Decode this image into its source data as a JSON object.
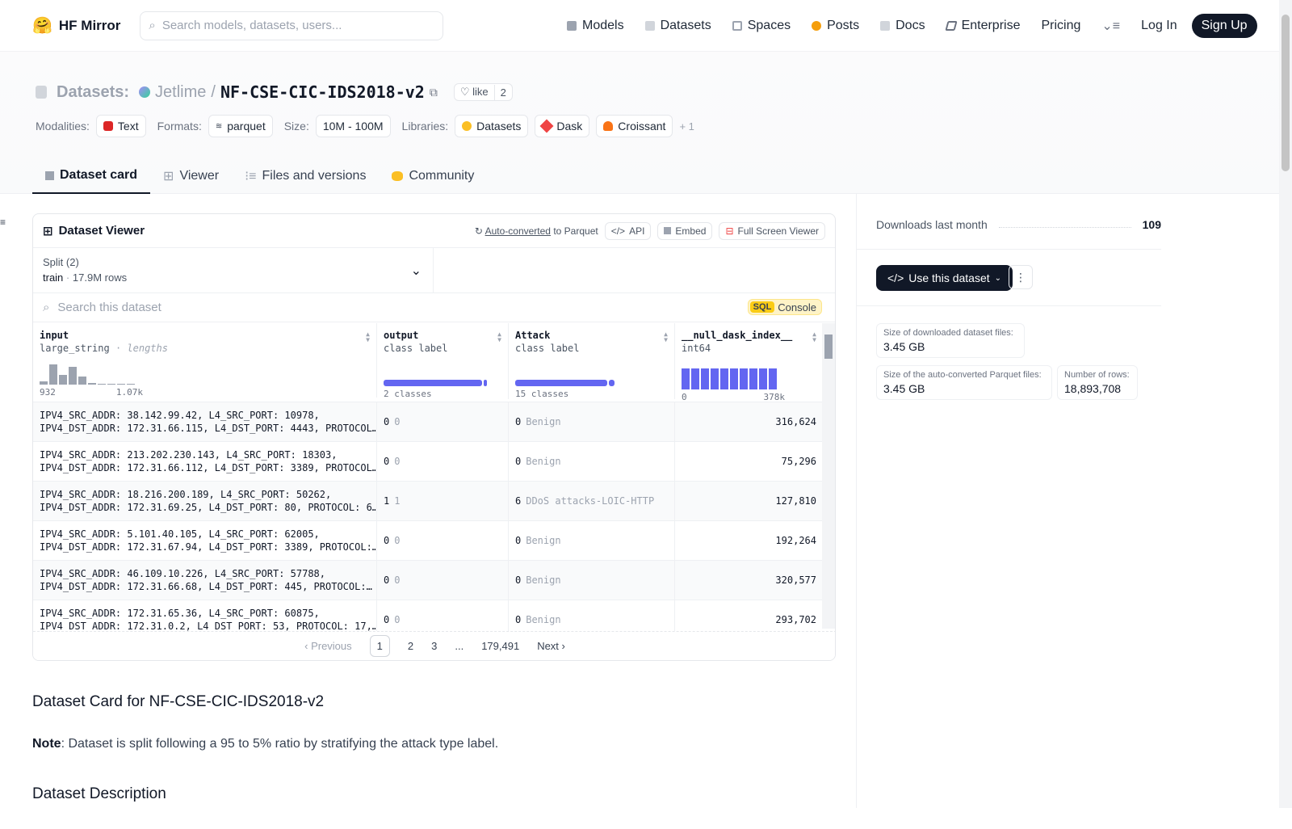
{
  "nav": {
    "brand": "HF Mirror",
    "search_placeholder": "Search models, datasets, users...",
    "links": [
      "Models",
      "Datasets",
      "Spaces",
      "Posts",
      "Docs",
      "Enterprise",
      "Pricing"
    ],
    "login": "Log In",
    "signup": "Sign Up"
  },
  "header": {
    "prefix": "Datasets:",
    "owner": "Jetlime",
    "sep": "/",
    "name": "NF-CSE-CIC-IDS2018-v2",
    "like_label": "like",
    "like_count": "2",
    "modalities_label": "Modalities:",
    "modality": "Text",
    "formats_label": "Formats:",
    "format": "parquet",
    "size_label": "Size:",
    "size": "10M - 100M",
    "libraries_label": "Libraries:",
    "libraries": [
      "Datasets",
      "Dask",
      "Croissant"
    ],
    "more": "+ 1"
  },
  "tabs": [
    "Dataset card",
    "Viewer",
    "Files and versions",
    "Community"
  ],
  "viewer": {
    "title": "Dataset Viewer",
    "auto_converted": "Auto-converted",
    "to_parquet": "to Parquet",
    "api": "API",
    "embed": "Embed",
    "fullscreen": "Full Screen Viewer",
    "split_label": "Split (2)",
    "split_value": "train",
    "split_rows": "17.9M rows",
    "search_placeholder": "Search this dataset",
    "sql": "SQL",
    "console": "Console",
    "columns": [
      {
        "name": "input",
        "type": "large_string",
        "sub": "lengths",
        "min": "932",
        "max": "1.07k"
      },
      {
        "name": "output",
        "type": "class label",
        "summary": "2 classes"
      },
      {
        "name": "Attack",
        "type": "class label",
        "summary": "15 classes"
      },
      {
        "name": "__null_dask_index__",
        "type": "int64",
        "min": "0",
        "max": "378k"
      }
    ],
    "input_hist": [
      0.15,
      0.95,
      0.45,
      0.85,
      0.4,
      0.08,
      0.05,
      0.05,
      0.05,
      0.05
    ],
    "index_hist": [
      1,
      1,
      1,
      1,
      1,
      1,
      1,
      1,
      1,
      1
    ],
    "output_split": 0.95,
    "attack_split": 0.93,
    "rows": [
      {
        "l1": "IPV4_SRC_ADDR: 38.142.99.42, L4_SRC_PORT: 10978,",
        "l2": "IPV4_DST_ADDR: 172.31.66.115, L4_DST_PORT: 4443, PROTOCOL…",
        "out": "0",
        "outl": "0",
        "att": "0",
        "attl": "Benign",
        "idx": "316,624"
      },
      {
        "l1": "IPV4_SRC_ADDR: 213.202.230.143, L4_SRC_PORT: 18303,",
        "l2": "IPV4_DST_ADDR: 172.31.66.112, L4_DST_PORT: 3389, PROTOCOL…",
        "out": "0",
        "outl": "0",
        "att": "0",
        "attl": "Benign",
        "idx": "75,296"
      },
      {
        "l1": "IPV4_SRC_ADDR: 18.216.200.189, L4_SRC_PORT: 50262,",
        "l2": "IPV4_DST_ADDR: 172.31.69.25, L4_DST_PORT: 80, PROTOCOL: 6…",
        "out": "1",
        "outl": "1",
        "att": "6",
        "attl": "DDoS attacks-LOIC-HTTP",
        "idx": "127,810"
      },
      {
        "l1": "IPV4_SRC_ADDR: 5.101.40.105, L4_SRC_PORT: 62005,",
        "l2": "IPV4_DST_ADDR: 172.31.67.94, L4_DST_PORT: 3389, PROTOCOL:…",
        "out": "0",
        "outl": "0",
        "att": "0",
        "attl": "Benign",
        "idx": "192,264"
      },
      {
        "l1": "IPV4_SRC_ADDR: 46.109.10.226, L4_SRC_PORT: 57788,",
        "l2": "IPV4_DST_ADDR: 172.31.66.68, L4_DST_PORT: 445, PROTOCOL:…",
        "out": "0",
        "outl": "0",
        "att": "0",
        "attl": "Benign",
        "idx": "320,577"
      },
      {
        "l1": "IPV4_SRC_ADDR: 172.31.65.36, L4_SRC_PORT: 60875,",
        "l2": "IPV4_DST_ADDR: 172.31.0.2, L4_DST_PORT: 53, PROTOCOL: 17,…",
        "out": "0",
        "outl": "0",
        "att": "0",
        "attl": "Benign",
        "idx": "293,702"
      }
    ],
    "pager": {
      "prev": "Previous",
      "pages": [
        "1",
        "2",
        "3",
        "...",
        "179,491"
      ],
      "next": "Next"
    }
  },
  "sidebar": {
    "downloads_label": "Downloads last month",
    "downloads": "109",
    "use_button": "Use this dataset",
    "dl_size_label": "Size of downloaded dataset files:",
    "dl_size": "3.45 GB",
    "pq_size_label": "Size of the auto-converted Parquet files:",
    "pq_size": "3.45 GB",
    "rows_label": "Number of rows:",
    "rows": "18,893,708"
  },
  "card": {
    "title": "Dataset Card for NF-CSE-CIC-IDS2018-v2",
    "note_bold": "Note",
    "note_text": ": Dataset is split following a 95 to 5% ratio by stratifying the attack type label.",
    "section": "Dataset Description"
  },
  "colors": {
    "accent": "#6366f1",
    "dark": "#111827"
  }
}
